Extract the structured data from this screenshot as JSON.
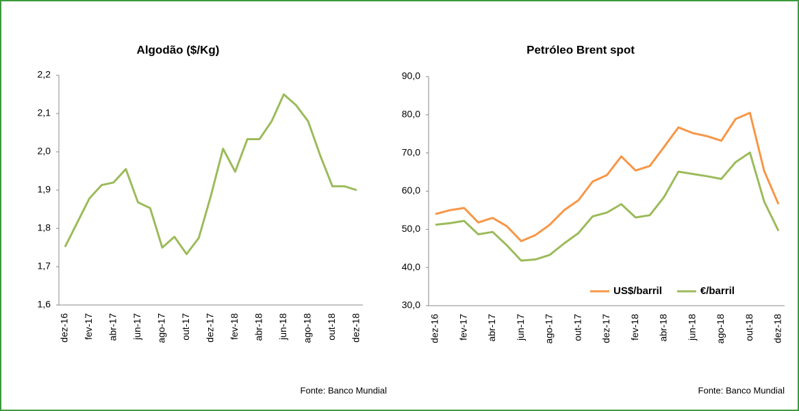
{
  "chart_data": [
    {
      "type": "line",
      "title": "Algodão ($/Kg)",
      "categories": [
        "dez-16",
        null,
        "fev-17",
        null,
        "abr-17",
        null,
        "jun-17",
        null,
        "ago-17",
        null,
        "out-17",
        null,
        "dez-17",
        null,
        "fev-18",
        null,
        "abr-18",
        null,
        "jun-18",
        null,
        "ago-18",
        null,
        "out-18",
        null,
        "dez-18"
      ],
      "series": [
        {
          "name": null,
          "color": "#9bbb59",
          "values": [
            1.752,
            1.815,
            1.878,
            1.913,
            1.92,
            1.955,
            1.868,
            1.853,
            1.75,
            1.778,
            1.733,
            1.775,
            1.885,
            2.008,
            1.948,
            2.033,
            2.033,
            2.08,
            2.15,
            2.122,
            2.08,
            1.99,
            1.91,
            1.91,
            1.9
          ]
        }
      ],
      "ylim": [
        1.6,
        2.2
      ],
      "yticks": [
        {
          "value": 1.6,
          "label": "1,6"
        },
        {
          "value": 1.7,
          "label": "1,7"
        },
        {
          "value": 1.8,
          "label": "1,8"
        },
        {
          "value": 1.9,
          "label": "1,9"
        },
        {
          "value": 2.0,
          "label": "2,0"
        },
        {
          "value": 2.1,
          "label": "2,1"
        },
        {
          "value": 2.2,
          "label": "2,2"
        }
      ],
      "source": "Fonte: Banco Mundial",
      "legend": false
    },
    {
      "type": "line",
      "title": "Petróleo  Brent spot",
      "categories": [
        "dez-16",
        null,
        "fev-17",
        null,
        "abr-17",
        null,
        "jun-17",
        null,
        "ago-17",
        null,
        "out-17",
        null,
        "dez-17",
        null,
        "fev-18",
        null,
        "abr-18",
        null,
        "jun-18",
        null,
        "ago-18",
        null,
        "out-18",
        null,
        "dez-18"
      ],
      "series": [
        {
          "name": "US$/barril",
          "color": "#f79646",
          "values": [
            54.0,
            55.0,
            55.6,
            51.8,
            53.0,
            50.8,
            46.9,
            48.5,
            51.2,
            55.0,
            57.6,
            62.5,
            64.2,
            69.1,
            65.4,
            66.6,
            71.6,
            76.7,
            75.2,
            74.4,
            73.2,
            78.9,
            80.5,
            65.3,
            56.6
          ]
        },
        {
          "name": "€/barril",
          "color": "#9bbb59",
          "values": [
            51.2,
            51.6,
            52.2,
            48.7,
            49.3,
            45.8,
            41.8,
            42.1,
            43.3,
            46.3,
            49.0,
            53.4,
            54.4,
            56.6,
            53.1,
            53.7,
            58.5,
            65.1,
            64.5,
            63.9,
            63.2,
            67.6,
            70.1,
            57.3,
            49.6
          ]
        }
      ],
      "ylim": [
        30,
        90
      ],
      "yticks": [
        {
          "value": 30,
          "label": "30,0"
        },
        {
          "value": 40,
          "label": "40,0"
        },
        {
          "value": 50,
          "label": "50,0"
        },
        {
          "value": 60,
          "label": "60,0"
        },
        {
          "value": 70,
          "label": "70,0"
        },
        {
          "value": 80,
          "label": "80,0"
        },
        {
          "value": 90,
          "label": "90,0"
        }
      ],
      "source": "Fonte: Banco Mundial",
      "legend": "lower right"
    }
  ]
}
